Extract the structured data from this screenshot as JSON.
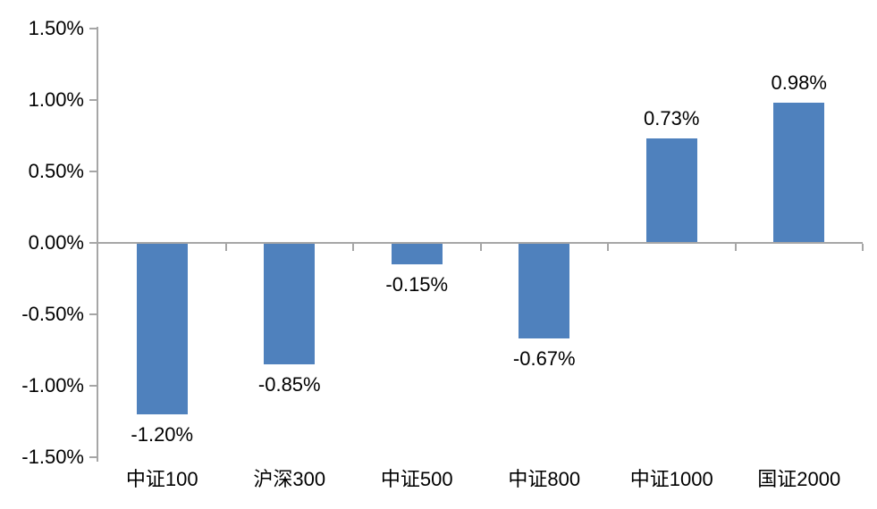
{
  "chart_data": {
    "type": "bar",
    "categories": [
      "中证100",
      "沪深300",
      "中证500",
      "中证800",
      "中证1000",
      "国证2000"
    ],
    "values": [
      -1.2,
      -0.85,
      -0.15,
      -0.67,
      0.73,
      0.98
    ],
    "labels": [
      "-1.20%",
      "-0.85%",
      "-0.15%",
      "-0.67%",
      "0.73%",
      "0.98%"
    ],
    "y_ticks": [
      "1.50%",
      "1.00%",
      "0.50%",
      "0.00%",
      "-0.50%",
      "-1.00%",
      "-1.50%"
    ],
    "y_tick_values": [
      1.5,
      1.0,
      0.5,
      0.0,
      -0.5,
      -1.0,
      -1.5
    ],
    "ylim": [
      -1.5,
      1.5
    ],
    "title": "",
    "xlabel": "",
    "ylabel": "",
    "grid": false,
    "legend": false,
    "bar_color": "#4f81bd",
    "axis_color": "#a6a6a6",
    "text_color": "#000000"
  }
}
